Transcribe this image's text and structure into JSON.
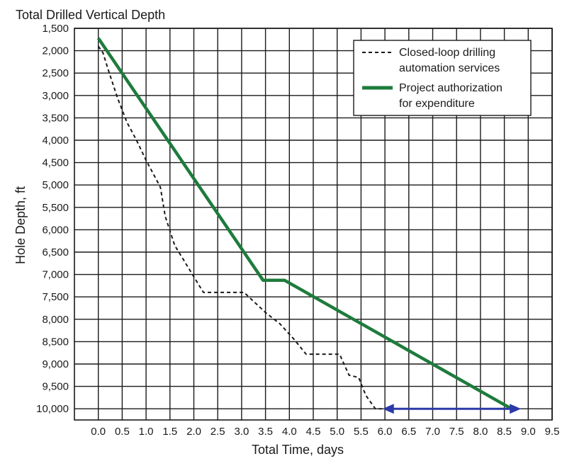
{
  "chart_data": {
    "type": "line",
    "title": "Total Drilled Vertical Depth",
    "xlabel": "Total Time, days",
    "ylabel": "Hole Depth, ft",
    "xlim": [
      -0.5,
      9.5
    ],
    "ylim": [
      1500,
      10250
    ],
    "y_inverted": true,
    "grid": true,
    "legend_position": "top-right",
    "x_ticks": [
      "0.0",
      "0.5",
      "1.0",
      "1.5",
      "2.0",
      "2.5",
      "3.0",
      "3.5",
      "4.0",
      "4.5",
      "5.0",
      "5.5",
      "6.0",
      "6.5",
      "7.0",
      "7.5",
      "8.0",
      "8.5",
      "9.0",
      "9.5"
    ],
    "y_ticks": [
      "1,500",
      "2,000",
      "2,500",
      "3,000",
      "3,500",
      "4,000",
      "4,500",
      "5,000",
      "5,500",
      "6,000",
      "6,500",
      "7,000",
      "7,500",
      "8,000",
      "8,500",
      "9,000",
      "9,500",
      "10,000"
    ],
    "series": [
      {
        "name": "Closed-loop drilling automation services",
        "style": "dashed",
        "color": "#1a1a1a",
        "x": [
          0.0,
          0.1,
          0.2,
          0.4,
          0.6,
          0.8,
          1.0,
          1.2,
          1.3,
          1.4,
          1.6,
          1.8,
          2.0,
          2.2,
          2.5,
          2.8,
          3.05,
          3.25,
          3.5,
          3.8,
          4.1,
          4.35,
          4.6,
          4.8,
          5.05,
          5.25,
          5.45,
          5.6,
          5.8,
          5.95
        ],
        "y": [
          1900,
          2050,
          2400,
          3050,
          3600,
          4000,
          4450,
          4850,
          5050,
          5700,
          6350,
          6700,
          7050,
          7400,
          7400,
          7400,
          7400,
          7600,
          7850,
          8100,
          8450,
          8780,
          8780,
          8780,
          8780,
          9250,
          9300,
          9700,
          10000,
          10000
        ]
      },
      {
        "name": "Project authorization for expenditure",
        "style": "solid",
        "color": "#1e7b3c",
        "x": [
          0.0,
          3.45,
          3.9,
          8.65
        ],
        "y": [
          1720,
          7130,
          7130,
          10000
        ]
      }
    ],
    "annotations": [
      {
        "type": "double-arrow",
        "color": "#2b3aa6",
        "x_start": 5.95,
        "x_end": 8.85,
        "y": 10000
      }
    ],
    "legend": [
      {
        "label_lines": [
          "Closed-loop drilling",
          "automation services"
        ],
        "style": "dashed",
        "color": "#1a1a1a"
      },
      {
        "label_lines": [
          "Project authorization",
          "for expenditure"
        ],
        "style": "solid",
        "color": "#1e7b3c"
      }
    ]
  }
}
